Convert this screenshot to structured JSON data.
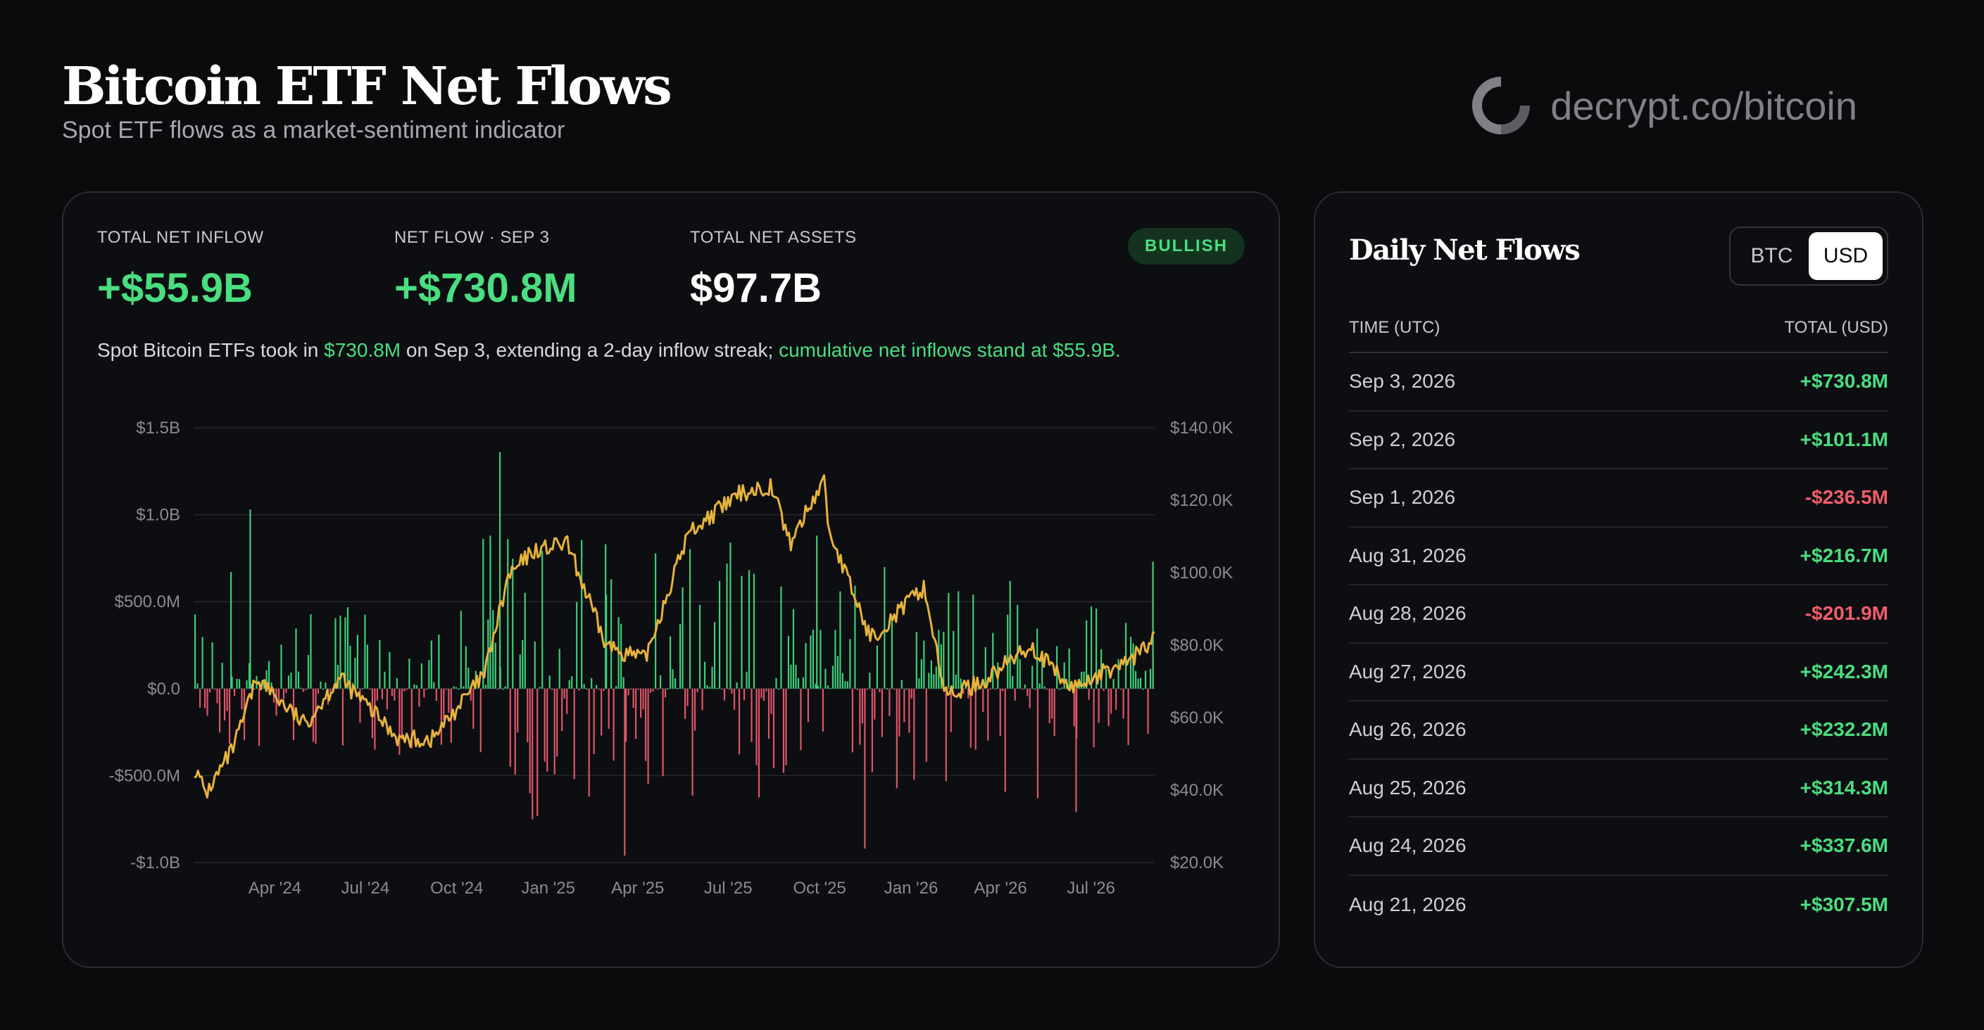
{
  "header": {
    "title": "Bitcoin ETF Net Flows",
    "subtitle": "Spot ETF flows as a market-sentiment indicator",
    "brand": "decrypt.co/bitcoin"
  },
  "stats": [
    {
      "label": "TOTAL NET INFLOW",
      "value": "+$55.9B",
      "tone": "pos"
    },
    {
      "label": "NET FLOW · SEP 3",
      "value": "+$730.8M",
      "tone": "pos"
    },
    {
      "label": "TOTAL NET ASSETS",
      "value": "$97.7B",
      "tone": "white"
    }
  ],
  "badge": "BULLISH",
  "summary": {
    "part1": "Spot Bitcoin ETFs took in ",
    "hl1": "$730.8M",
    "part2": " on Sep 3, extending a 2-day inflow streak; ",
    "hl2": "cumulative net inflows stand at $55.9B."
  },
  "chart_data": {
    "type": "bar",
    "series": [
      {
        "type": "bar"
      },
      {
        "type": "line"
      }
    ],
    "y_left": {
      "ticks": [
        "$1.5B",
        "$1.0B",
        "$500.0M",
        "$0.0",
        "-$500.0M",
        "-$1.0B"
      ],
      "range_millions": [
        -1000,
        1500
      ]
    },
    "y_right": {
      "ticks": [
        "$140.0K",
        "$120.0K",
        "$100.0K",
        "$80.0K",
        "$60.0K",
        "$40.0K",
        "$20.0K"
      ],
      "range_thousands": [
        20,
        140
      ]
    },
    "x_ticks": [
      "Apr '24",
      "Jul '24",
      "Oct '24",
      "Jan '25",
      "Apr '25",
      "Jul '25",
      "Oct '25",
      "Jan '26",
      "Apr '26",
      "Jul '26"
    ],
    "x_range": [
      "2024-01-11",
      "2026-09-03"
    ],
    "colors": {
      "inflow": "#3ecf7a",
      "outflow": "#e0566a",
      "price": "#e6b33c",
      "grid": "#26282d"
    },
    "price_anchors_k": [
      [
        "2024-01-11",
        46
      ],
      [
        "2024-01-23",
        39
      ],
      [
        "2024-02-20",
        52
      ],
      [
        "2024-03-14",
        71
      ],
      [
        "2024-05-01",
        58
      ],
      [
        "2024-06-05",
        71
      ],
      [
        "2024-08-05",
        54
      ],
      [
        "2024-09-06",
        54
      ],
      [
        "2024-10-29",
        72
      ],
      [
        "2024-11-22",
        99
      ],
      [
        "2024-12-17",
        106
      ],
      [
        "2025-01-20",
        108
      ],
      [
        "2025-02-28",
        80
      ],
      [
        "2025-04-08",
        76
      ],
      [
        "2025-05-22",
        111
      ],
      [
        "2025-07-14",
        122
      ],
      [
        "2025-08-14",
        124
      ],
      [
        "2025-09-01",
        108
      ],
      [
        "2025-10-06",
        126
      ],
      [
        "2025-10-10",
        112
      ],
      [
        "2025-11-21",
        82
      ],
      [
        "2025-12-15",
        88
      ],
      [
        "2026-01-14",
        96
      ],
      [
        "2026-02-05",
        66
      ],
      [
        "2026-03-15",
        70
      ],
      [
        "2026-05-01",
        80
      ],
      [
        "2026-06-10",
        68
      ],
      [
        "2026-08-10",
        76
      ],
      [
        "2026-09-03",
        82
      ]
    ]
  },
  "table": {
    "title": "Daily Net Flows",
    "toggle": {
      "options": [
        "BTC",
        "USD"
      ],
      "active": "USD"
    },
    "col_time": "TIME (UTC)",
    "col_total": "TOTAL (USD)",
    "rows": [
      {
        "date": "Sep 3, 2026",
        "value": "+$730.8M",
        "tone": "pos"
      },
      {
        "date": "Sep 2, 2026",
        "value": "+$101.1M",
        "tone": "pos"
      },
      {
        "date": "Sep 1, 2026",
        "value": "-$236.5M",
        "tone": "neg"
      },
      {
        "date": "Aug 31, 2026",
        "value": "+$216.7M",
        "tone": "pos"
      },
      {
        "date": "Aug 28, 2026",
        "value": "-$201.9M",
        "tone": "neg"
      },
      {
        "date": "Aug 27, 2026",
        "value": "+$242.3M",
        "tone": "pos"
      },
      {
        "date": "Aug 26, 2026",
        "value": "+$232.2M",
        "tone": "pos"
      },
      {
        "date": "Aug 25, 2026",
        "value": "+$314.3M",
        "tone": "pos"
      },
      {
        "date": "Aug 24, 2026",
        "value": "+$337.6M",
        "tone": "pos"
      },
      {
        "date": "Aug 21, 2026",
        "value": "+$307.5M",
        "tone": "pos"
      }
    ]
  }
}
